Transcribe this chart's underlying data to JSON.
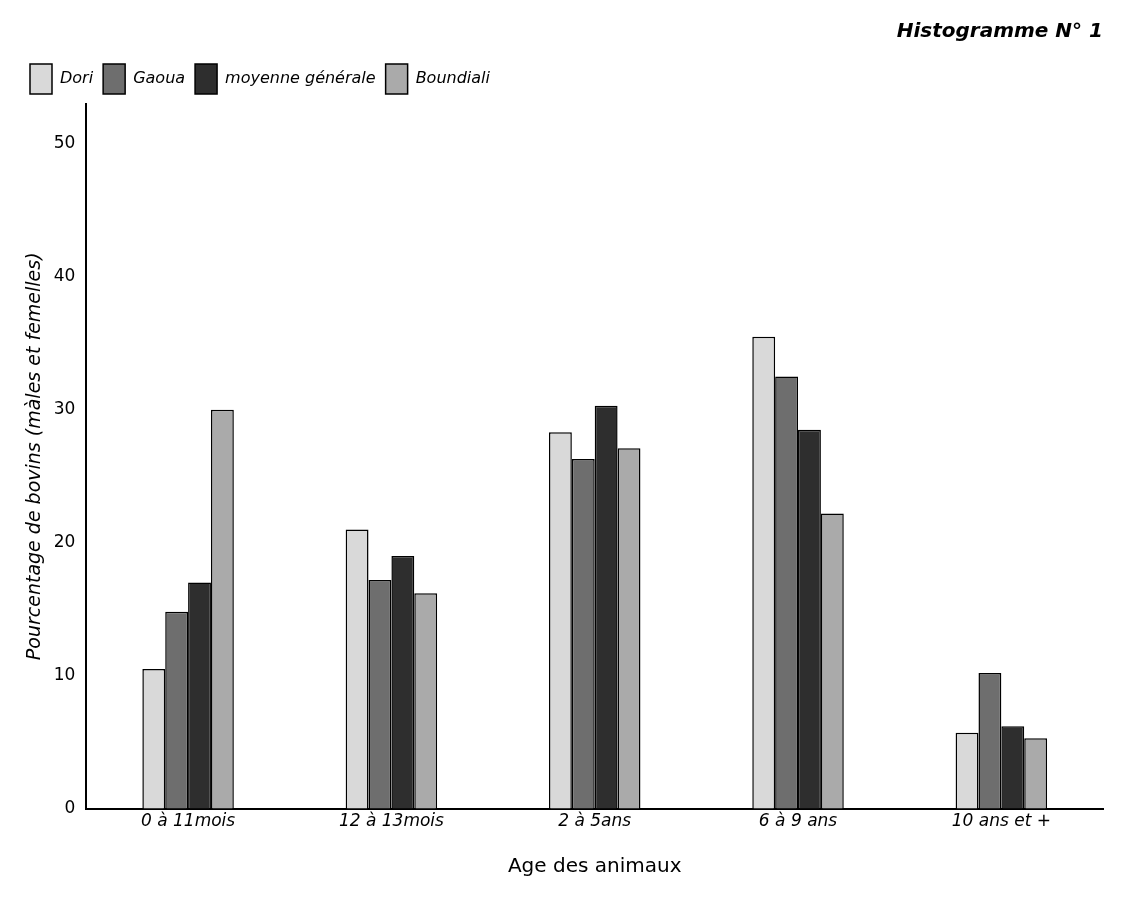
{
  "chart_data": {
    "type": "bar",
    "title": "Histogramme N° 1",
    "xlabel": "Age des animaux",
    "ylabel": "Pourcentage de bovins (màles et femelles)",
    "categories": [
      "0 à 11mois",
      "12 à 13mois",
      "2 à 5ans",
      "6 à 9 ans",
      "10 ans et +"
    ],
    "series": [
      {
        "name": "Dori",
        "color": "#d9d9d9",
        "values": [
          10.5,
          21,
          28.3,
          35.5,
          5.7
        ]
      },
      {
        "name": "Gaoua",
        "color": "#6e6e6e",
        "values": [
          14.8,
          17.2,
          26.3,
          32.5,
          10.2
        ]
      },
      {
        "name": "moyenne générale",
        "color": "#2e2e2e",
        "values": [
          17,
          19,
          30.3,
          28.5,
          6.2
        ]
      },
      {
        "name": "Boundiali",
        "color": "#aaaaaa",
        "values": [
          30,
          16.2,
          27.1,
          22.2,
          5.3
        ]
      }
    ],
    "ylim": [
      0,
      53
    ],
    "yticks": [
      0,
      10,
      20,
      30,
      40,
      50
    ],
    "grid": false,
    "legend": "top left"
  }
}
